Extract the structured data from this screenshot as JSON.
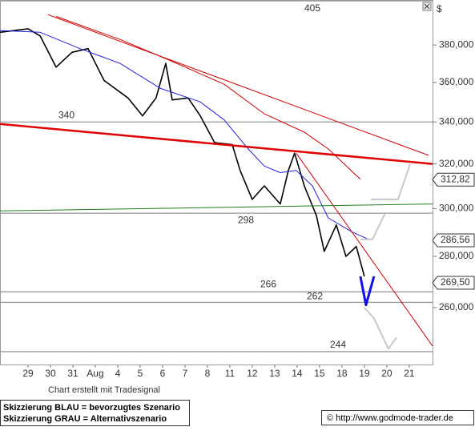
{
  "chart_data": {
    "type": "line",
    "y_unit": "$",
    "log_scale": true,
    "categories": [
      "29",
      "30",
      "31",
      "Aug",
      "4",
      "5",
      "6",
      "7",
      "8",
      "11",
      "12",
      "13",
      "14",
      "15",
      "18",
      "19",
      "20",
      "21"
    ],
    "xlim": [
      -1.25,
      18.04
    ],
    "ylim": [
      239.5,
      405.5
    ],
    "yticks": [
      {
        "value": 380,
        "label": "380,000"
      },
      {
        "value": 360,
        "label": "360,000"
      },
      {
        "value": 340,
        "label": "340,000"
      },
      {
        "value": 320,
        "label": "320,000"
      },
      {
        "value": 300,
        "label": "300,000"
      },
      {
        "value": 280,
        "label": "280,000"
      },
      {
        "value": 260,
        "label": "260,000"
      }
    ],
    "levels": [
      405,
      340,
      298,
      266,
      262,
      244
    ],
    "level_color": "#9a9a9a",
    "price_tags": [
      {
        "value": 312.82,
        "label": "312,82"
      },
      {
        "value": 286.56,
        "label": "286,56"
      },
      {
        "value": 269.5,
        "label": "269,50"
      }
    ],
    "series": [
      {
        "color": "#000000",
        "width": 1.6,
        "x": [
          -1.25,
          0,
          0.54,
          1.25,
          1.96,
          2.68,
          3.39,
          4.46,
          5.11,
          5.71,
          6.14,
          6.43,
          7.14,
          7.68,
          8.32,
          9.11,
          9.46,
          10,
          10.54,
          11.25,
          11.61,
          11.89,
          12.32,
          12.86,
          13.21,
          13.75,
          14.18,
          14.64,
          15
        ],
        "values": [
          387,
          389,
          385,
          368,
          376,
          378,
          361,
          352,
          343,
          352,
          370,
          351,
          352,
          343,
          330,
          329,
          317,
          304,
          310,
          302,
          317,
          325,
          310,
          297,
          282,
          293,
          280,
          284,
          272
        ]
      },
      {
        "color": "#2020e0",
        "width": 1,
        "x": [
          -1.25,
          0.54,
          2.32,
          4.11,
          5.89,
          7.68,
          8.75,
          9.82,
          10.54,
          11.25,
          11.96,
          12.68,
          13.39,
          14.46,
          15.18
        ],
        "values": [
          388,
          387,
          378,
          370,
          357,
          350,
          341,
          327,
          319,
          316,
          317,
          310,
          296,
          290,
          287
        ]
      },
      {
        "color": "#d00000",
        "width": 1,
        "x": [
          1.25,
          4.11,
          6.25,
          8.75,
          10.54,
          12.32,
          13.39,
          14.82
        ],
        "values": [
          396,
          383,
          372,
          359,
          344,
          335,
          327,
          313
        ]
      },
      {
        "color": "#d00000",
        "width": 1,
        "x": [
          0.89,
          17.86
        ],
        "values": [
          397,
          324
        ]
      },
      {
        "color": "#e00000",
        "width": 2.5,
        "x": [
          -1.25,
          18.04
        ],
        "values": [
          339,
          320
        ]
      },
      {
        "color": "#d00000",
        "width": 1,
        "x": [
          11.96,
          18.04
        ],
        "values": [
          325,
          246
        ]
      },
      {
        "color": "#208020",
        "width": 1,
        "x": [
          -1.25,
          18.04
        ],
        "values": [
          299,
          302
        ]
      },
      {
        "color": "#1010e0",
        "width": 3,
        "x": [
          14.82,
          15.07,
          15.43
        ],
        "values": [
          272,
          261,
          272
        ]
      },
      {
        "color": "#c8c8c8",
        "width": 2,
        "x": [
          15.29,
          16.5,
          17.04
        ],
        "values": [
          304,
          304,
          320
        ]
      },
      {
        "color": "#c8c8c8",
        "width": 2,
        "x": [
          14.82,
          15.36,
          15.93
        ],
        "values": [
          287,
          287,
          298
        ]
      },
      {
        "color": "#c8c8c8",
        "width": 2,
        "x": [
          15,
          15.43,
          16.07,
          16.43
        ],
        "values": [
          260,
          256,
          245,
          249
        ]
      }
    ],
    "footer": {
      "credit": "Chart erstellt mit Tradesignal",
      "legend_blue": "Skizzierung BLAU = bevorzugtes Szenario",
      "legend_gray": "Skizzierung GRAU = Alternativszenario",
      "url": "© http://www.godmode-trader.de"
    }
  }
}
